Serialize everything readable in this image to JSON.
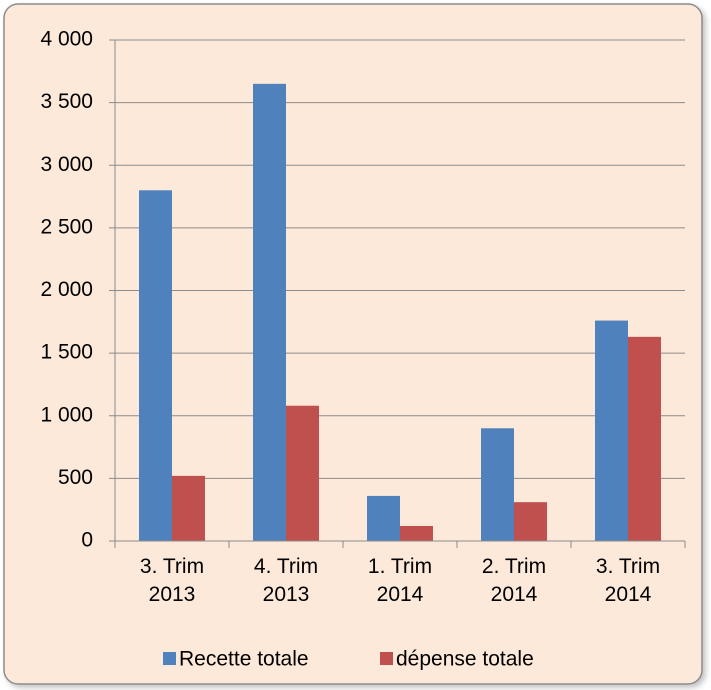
{
  "chart_data": {
    "type": "bar",
    "categories": [
      "3. Trim 2013",
      "4. Trim 2013",
      "1. Trim 2014",
      "2. Trim 2014",
      "3. Trim 2014"
    ],
    "series": [
      {
        "name": "Recette totale",
        "color": "#4f81bd",
        "values": [
          2800,
          3650,
          360,
          900,
          1760
        ]
      },
      {
        "name": "dépense totale",
        "color": "#c0504d",
        "values": [
          520,
          1080,
          120,
          310,
          1630
        ]
      }
    ],
    "ylim": [
      0,
      4000
    ],
    "yticks": [
      0,
      500,
      {
        "value": 1000,
        "label": "1 000"
      },
      {
        "value": 1500,
        "label": "1 500"
      },
      {
        "value": 2000,
        "label": "2 000"
      },
      {
        "value": 2500,
        "label": "2 500"
      },
      {
        "value": 3000,
        "label": "3 000"
      },
      {
        "value": 3500,
        "label": "3 500"
      },
      {
        "value": 4000,
        "label": "4 000"
      }
    ],
    "grid": true,
    "legend": "bottom"
  }
}
